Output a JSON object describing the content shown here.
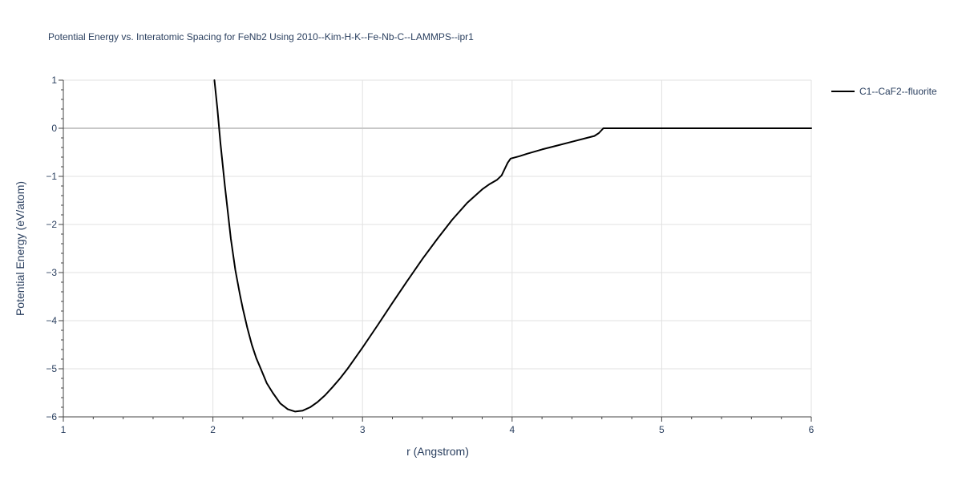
{
  "chart_data": {
    "type": "line",
    "title": "Potential Energy vs. Interatomic Spacing for FeNb2 Using 2010--Kim-H-K--Fe-Nb-C--LAMMPS--ipr1",
    "xlabel": "r (Angstrom)",
    "ylabel": "Potential Energy (eV/atom)",
    "xlim": [
      1,
      6
    ],
    "ylim": [
      -6,
      1
    ],
    "x_ticks": [
      "1",
      "2",
      "3",
      "4",
      "5",
      "6"
    ],
    "y_ticks": [
      "1",
      "0",
      "−1",
      "−2",
      "−3",
      "−4",
      "−5",
      "−6"
    ],
    "grid": true,
    "zero_line": true,
    "legend_position": "top-right",
    "series": [
      {
        "name": "C1--CaF2--fluorite",
        "color": "#000000",
        "x": [
          2.01,
          2.03,
          2.05,
          2.08,
          2.1,
          2.12,
          2.15,
          2.18,
          2.2,
          2.23,
          2.26,
          2.29,
          2.32,
          2.36,
          2.4,
          2.45,
          2.5,
          2.55,
          2.6,
          2.65,
          2.7,
          2.75,
          2.8,
          2.85,
          2.9,
          2.95,
          3.0,
          3.1,
          3.2,
          3.3,
          3.4,
          3.5,
          3.6,
          3.7,
          3.8,
          3.85,
          3.9,
          3.93,
          3.95,
          3.97,
          3.99,
          4.05,
          4.1,
          4.2,
          4.3,
          4.4,
          4.5,
          4.55,
          4.58,
          4.61,
          4.7,
          4.8,
          5.0,
          5.25,
          5.5,
          5.75,
          6.0
        ],
        "y": [
          1.0,
          0.4,
          -0.3,
          -1.2,
          -1.75,
          -2.3,
          -2.95,
          -3.45,
          -3.75,
          -4.15,
          -4.5,
          -4.78,
          -5.0,
          -5.3,
          -5.5,
          -5.72,
          -5.84,
          -5.89,
          -5.87,
          -5.8,
          -5.69,
          -5.55,
          -5.38,
          -5.2,
          -5.0,
          -4.78,
          -4.56,
          -4.1,
          -3.63,
          -3.17,
          -2.72,
          -2.3,
          -1.9,
          -1.55,
          -1.27,
          -1.16,
          -1.07,
          -0.98,
          -0.85,
          -0.72,
          -0.63,
          -0.58,
          -0.53,
          -0.44,
          -0.36,
          -0.28,
          -0.2,
          -0.16,
          -0.1,
          0.0,
          0.0,
          0.0,
          0.0,
          0.0,
          0.0,
          0.0,
          0.0
        ]
      }
    ]
  }
}
